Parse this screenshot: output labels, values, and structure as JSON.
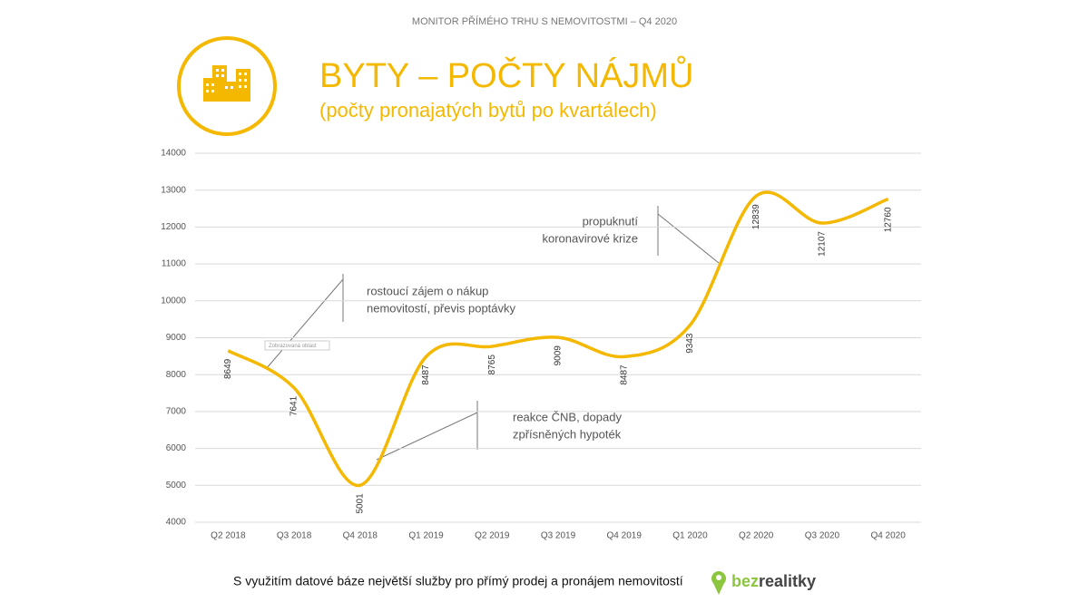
{
  "header": "MONITOR PŘÍMÉHO TRHU S NEMOVITOSTMI – Q4 2020",
  "chart_data": {
    "type": "line",
    "title": "BYTY – POČTY NÁJMŮ",
    "subtitle": "(počty pronajatých bytů po kvartálech)",
    "categories": [
      "Q2 2018",
      "Q3 2018",
      "Q4 2018",
      "Q1 2019",
      "Q2 2019",
      "Q3 2019",
      "Q4 2019",
      "Q1 2020",
      "Q2 2020",
      "Q3 2020",
      "Q4 2020"
    ],
    "values": [
      8649,
      7641,
      5001,
      8487,
      8765,
      9009,
      8487,
      9343,
      12839,
      12107,
      12760
    ],
    "color": "#f5b800",
    "smooth": true,
    "grid": true,
    "ylim": [
      4000,
      14000
    ],
    "yticks": [
      4000,
      5000,
      6000,
      7000,
      8000,
      9000,
      10000,
      11000,
      12000,
      13000,
      14000
    ],
    "annotations": [
      {
        "lines": [
          "rostoucí zájem o nákup",
          "nemovitostí, převis poptávky"
        ]
      },
      {
        "lines": [
          "reakce ČNB, dopady",
          "zpřísněných hypoték"
        ]
      },
      {
        "lines": [
          "propuknutí",
          "koronavirové krize"
        ]
      }
    ],
    "tooltip": "Zobrazovaná oblast"
  },
  "footer": "S využitím datové báze největší služby pro přímý prodej a pronájem nemovitostí",
  "logo": {
    "part1": "bez",
    "part2": "realitky"
  }
}
